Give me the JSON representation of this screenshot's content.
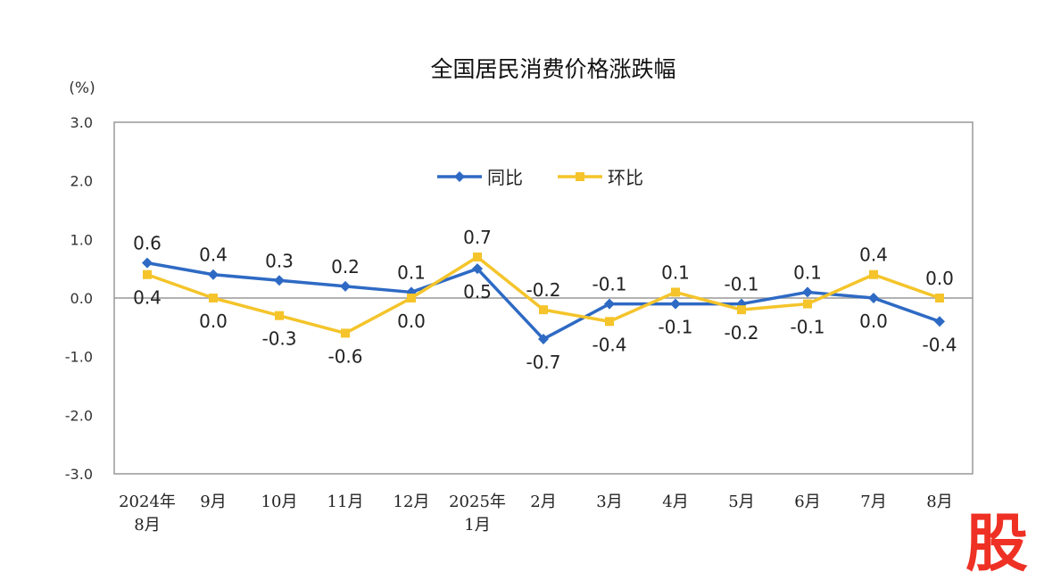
{
  "chart_data": {
    "type": "line",
    "title": "全国居民消费价格涨跌幅",
    "ylabel": "(%)",
    "xlabel": "",
    "ylim": [
      -3.0,
      3.0
    ],
    "yticks": [
      "3.0",
      "2.0",
      "1.0",
      "0.0",
      "-1.0",
      "-2.0",
      "-3.0"
    ],
    "categories": [
      [
        "2024年",
        "8月"
      ],
      [
        "9月"
      ],
      [
        "10月"
      ],
      [
        "11月"
      ],
      [
        "12月"
      ],
      [
        "2025年",
        "1月"
      ],
      [
        "2月"
      ],
      [
        "3月"
      ],
      [
        "4月"
      ],
      [
        "5月"
      ],
      [
        "6月"
      ],
      [
        "7月"
      ],
      [
        "8月"
      ]
    ],
    "legend_placement": "top-center",
    "grid": false,
    "series": [
      {
        "name": "同比",
        "color": "#2e6ac4",
        "values": [
          0.6,
          0.4,
          0.3,
          0.2,
          0.1,
          0.5,
          -0.7,
          -0.1,
          -0.1,
          -0.1,
          0.1,
          0.0,
          -0.4
        ],
        "labels": [
          "0.6",
          "0.4",
          "0.3",
          "0.2",
          "0.1",
          "0.5",
          "-0.7",
          "-0.1",
          "-0.1",
          "-0.1",
          "0.1",
          "0.0",
          "-0.4"
        ],
        "label_side": [
          "above",
          "above",
          "above",
          "above",
          "above",
          "below",
          "below",
          "above",
          "below",
          "above",
          "above",
          "below",
          "below"
        ]
      },
      {
        "name": "环比",
        "color": "#f4c42a",
        "values": [
          0.4,
          0.0,
          -0.3,
          -0.6,
          0.0,
          0.7,
          -0.2,
          -0.4,
          0.1,
          -0.2,
          -0.1,
          0.4,
          0.0
        ],
        "labels": [
          "0.4",
          "0.0",
          "-0.3",
          "-0.6",
          "0.0",
          "0.7",
          "-0.2",
          "-0.4",
          "0.1",
          "-0.2",
          "-0.1",
          "0.4",
          "0.0"
        ],
        "label_side": [
          "below",
          "below",
          "below",
          "below",
          "below",
          "above",
          "above",
          "below",
          "above",
          "below",
          "below",
          "above",
          "above"
        ]
      }
    ]
  },
  "watermark": "股"
}
